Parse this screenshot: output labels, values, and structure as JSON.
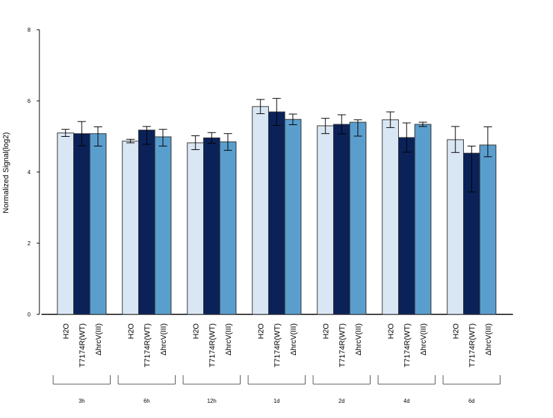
{
  "chart_data": {
    "type": "bar",
    "ylabel": "Normalized Signal(log2)",
    "ylim": [
      0,
      8
    ],
    "yticks": [
      0,
      2,
      4,
      6,
      8
    ],
    "ytick_labels": [
      "0",
      "2",
      "4",
      "6",
      "8"
    ],
    "groups": [
      "3h",
      "6h",
      "12h",
      "1d",
      "2d",
      "4d",
      "6d"
    ],
    "bar_labels": [
      "H2O",
      "T7174R(WT)",
      "ΔhrcV(III)"
    ],
    "series": [
      {
        "label": "H2O",
        "color": "#d9e6f4",
        "values": [
          5.1,
          4.87,
          4.82,
          5.84,
          5.3,
          5.47,
          4.91
        ],
        "err_low": [
          5.0,
          4.82,
          4.63,
          5.64,
          5.08,
          5.25,
          4.55
        ],
        "err_high": [
          5.2,
          4.92,
          5.02,
          6.04,
          5.51,
          5.69,
          5.28
        ]
      },
      {
        "label": "T7174R(WT)",
        "color": "#0b2259",
        "values": [
          5.08,
          5.18,
          4.96,
          5.69,
          5.34,
          4.97,
          4.53
        ],
        "err_low": [
          4.74,
          4.78,
          4.81,
          5.31,
          5.07,
          4.56,
          3.44
        ],
        "err_high": [
          5.42,
          5.28,
          5.11,
          6.07,
          5.61,
          5.38,
          4.73
        ]
      },
      {
        "label": "ΔhrcV(III)",
        "color": "#5a9ecd",
        "values": [
          5.08,
          4.99,
          4.85,
          5.48,
          5.4,
          5.34,
          4.76
        ],
        "err_low": [
          4.73,
          4.73,
          4.61,
          5.33,
          5.01,
          5.28,
          4.43
        ],
        "err_high": [
          5.27,
          5.2,
          5.08,
          5.63,
          5.47,
          5.4,
          5.27
        ]
      }
    ],
    "grid": false,
    "colors": {
      "H2O": "#d9e6f4",
      "T7174R(WT)": "#0b2259",
      "ΔhrcV(III)": "#5a9ecd",
      "outline": "#333333"
    }
  }
}
